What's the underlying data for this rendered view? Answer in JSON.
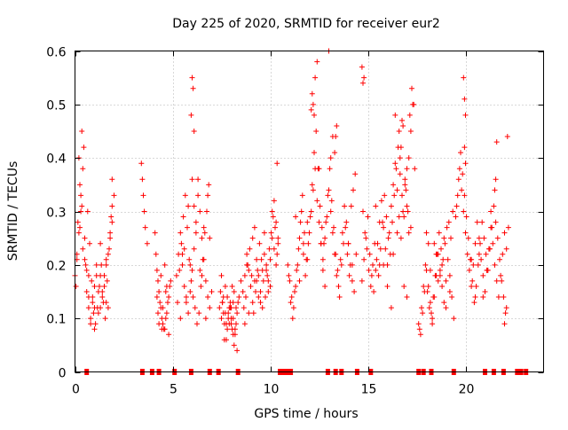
{
  "chart_data": {
    "type": "scatter",
    "title": "Day 225 of 2020, SRMTID for receiver eur2",
    "xlabel": "GPS time / hours",
    "ylabel": "SRMTID / TECUs",
    "xlim": [
      0,
      24
    ],
    "ylim": [
      0,
      0.6
    ],
    "xticks": [
      0,
      5,
      10,
      15,
      20
    ],
    "yticks": [
      0,
      0.1,
      0.2,
      0.3,
      0.4,
      0.5,
      0.6
    ],
    "xtick_labels": [
      "0",
      "5",
      "10",
      "15",
      "20"
    ],
    "ytick_labels": [
      "0",
      "0.1",
      "0.2",
      "0.3",
      "0.4",
      "0.5",
      "0.6"
    ],
    "grid": true,
    "marker": "plus",
    "color": "#ff0000",
    "series": [
      {
        "name": "SRMTID",
        "x": [
          0.0,
          0.1,
          0.2,
          0.3,
          0.35,
          0.4,
          0.5,
          0.55,
          0.6,
          0.7,
          0.8,
          0.9,
          1.0,
          1.1,
          1.2,
          1.3,
          1.4,
          1.5,
          1.6,
          1.7,
          1.8,
          1.9,
          2.0,
          0.05,
          0.15,
          0.25,
          0.45,
          0.65,
          0.75,
          0.85,
          0.95,
          1.05,
          1.15,
          1.25,
          1.35,
          1.45,
          1.55,
          1.65,
          1.75,
          1.85,
          0.2,
          0.3,
          0.5,
          0.7,
          0.9,
          1.1,
          1.3,
          1.5,
          1.7,
          1.9,
          0.25,
          0.35,
          0.6,
          0.8,
          1.0,
          1.2,
          1.4,
          1.6,
          1.8,
          0.1,
          0.4,
          0.7,
          1.0,
          1.3,
          1.6,
          1.9,
          3.4,
          3.45,
          3.5,
          3.55,
          3.6,
          3.7,
          4.1,
          4.2,
          4.3,
          4.4,
          4.5,
          4.6,
          4.7,
          4.8,
          4.9,
          4.15,
          4.25,
          4.35,
          4.45,
          4.55,
          4.65,
          4.75,
          4.85,
          4.2,
          4.4,
          4.6,
          4.8,
          4.3,
          4.5,
          4.7,
          4.25,
          4.45,
          4.65,
          5.2,
          5.3,
          5.4,
          5.5,
          5.6,
          5.7,
          5.8,
          5.9,
          6.0,
          6.1,
          6.2,
          6.3,
          6.4,
          6.5,
          6.6,
          6.7,
          6.8,
          6.9,
          7.0,
          5.25,
          5.35,
          5.45,
          5.55,
          5.65,
          5.75,
          5.85,
          5.95,
          6.05,
          6.15,
          6.25,
          6.35,
          6.45,
          6.55,
          6.65,
          6.75,
          6.85,
          5.5,
          5.7,
          5.9,
          6.1,
          6.3,
          6.5,
          6.7,
          6.9,
          5.4,
          5.6,
          5.8,
          6.0,
          6.2,
          6.4,
          6.6,
          6.8,
          5.95,
          6.0,
          6.05,
          6.1,
          7.4,
          7.5,
          7.6,
          7.7,
          7.8,
          7.9,
          8.0,
          8.1,
          8.2,
          8.3,
          8.4,
          8.5,
          7.45,
          7.55,
          7.65,
          7.75,
          7.85,
          7.95,
          8.05,
          8.15,
          8.25,
          8.35,
          7.5,
          7.7,
          7.9,
          8.1,
          8.3,
          7.6,
          7.8,
          8.0,
          8.2,
          7.55,
          7.75,
          7.95,
          8.15,
          7.65,
          7.85,
          8.05,
          8.25,
          8.0,
          8.1,
          8.6,
          8.7,
          8.8,
          8.9,
          9.0,
          9.1,
          9.2,
          9.3,
          9.4,
          9.5,
          9.6,
          9.7,
          9.8,
          9.9,
          10.0,
          10.1,
          10.2,
          10.3,
          10.4,
          8.65,
          8.75,
          8.85,
          8.95,
          9.05,
          9.15,
          9.25,
          9.35,
          9.45,
          9.55,
          9.65,
          9.75,
          9.85,
          9.95,
          10.05,
          10.15,
          10.25,
          10.35,
          8.7,
          8.9,
          9.1,
          9.3,
          9.5,
          9.7,
          9.9,
          10.1,
          10.3,
          8.8,
          9.0,
          9.2,
          9.4,
          9.6,
          9.8,
          10.0,
          10.2,
          10.35,
          10.4,
          10.9,
          11.0,
          11.1,
          11.2,
          11.3,
          11.4,
          11.5,
          11.6,
          11.7,
          11.8,
          11.9,
          12.0,
          12.1,
          12.2,
          12.3,
          12.4,
          12.5,
          12.6,
          12.7,
          12.8,
          12.9,
          13.0,
          13.1,
          13.2,
          13.3,
          13.4,
          13.5,
          13.6,
          13.7,
          13.8,
          13.9,
          14.0,
          14.1,
          14.2,
          14.3,
          14.4,
          10.95,
          11.05,
          11.15,
          11.25,
          11.35,
          11.45,
          11.55,
          11.65,
          11.75,
          11.85,
          11.95,
          12.05,
          12.15,
          12.25,
          12.35,
          12.45,
          12.55,
          12.65,
          12.75,
          12.85,
          12.95,
          13.05,
          13.15,
          13.25,
          13.35,
          13.45,
          13.55,
          13.65,
          13.75,
          13.85,
          13.95,
          14.05,
          14.15,
          14.25,
          14.35,
          12.2,
          12.3,
          12.4,
          13.0,
          13.1,
          13.35,
          13.4,
          12.1,
          12.15,
          12.25,
          13.2,
          13.3,
          12.5,
          12.6,
          12.7,
          12.8,
          11.3,
          11.5,
          11.7,
          11.9,
          14.0,
          14.2,
          14.7,
          14.8,
          14.9,
          15.0,
          15.1,
          15.2,
          15.3,
          15.4,
          15.5,
          15.6,
          15.7,
          15.8,
          15.9,
          16.0,
          16.1,
          16.2,
          16.3,
          16.4,
          16.5,
          16.6,
          16.7,
          16.8,
          16.9,
          17.0,
          17.1,
          17.2,
          17.3,
          17.4,
          14.75,
          14.85,
          14.95,
          15.05,
          15.15,
          15.25,
          15.35,
          15.45,
          15.55,
          15.65,
          15.75,
          15.85,
          15.95,
          16.05,
          16.15,
          16.25,
          16.35,
          16.45,
          16.55,
          16.65,
          16.75,
          16.85,
          16.95,
          17.05,
          17.15,
          17.25,
          17.35,
          16.6,
          16.65,
          16.7,
          16.8,
          16.9,
          17.0,
          17.1,
          16.3,
          16.4,
          16.5,
          14.7,
          14.75,
          14.8,
          16.75,
          16.85,
          17.0,
          17.2,
          15.4,
          15.6,
          15.8,
          16.0,
          16.2,
          17.6,
          17.7,
          17.8,
          17.9,
          18.0,
          18.1,
          18.2,
          18.3,
          18.4,
          18.5,
          18.6,
          18.7,
          18.8,
          18.9,
          19.0,
          19.1,
          19.2,
          19.3,
          19.4,
          17.65,
          17.75,
          17.85,
          17.95,
          18.05,
          18.15,
          18.25,
          18.35,
          18.45,
          18.55,
          18.65,
          18.75,
          18.85,
          18.95,
          19.05,
          19.15,
          19.25,
          19.35,
          18.0,
          18.2,
          18.4,
          18.6,
          18.8,
          19.0,
          19.2,
          18.1,
          18.3,
          18.5,
          18.7,
          18.9,
          19.5,
          19.6,
          19.7,
          19.8,
          19.9,
          20.0,
          20.1,
          20.2,
          20.3,
          20.4,
          20.5,
          20.6,
          20.7,
          20.8,
          20.9,
          21.0,
          21.1,
          21.2,
          21.3,
          21.4,
          21.5,
          21.6,
          21.7,
          21.8,
          21.9,
          22.0,
          22.1,
          22.2,
          19.55,
          19.65,
          19.75,
          19.85,
          19.95,
          20.05,
          20.15,
          20.25,
          20.35,
          20.45,
          20.55,
          20.65,
          20.75,
          20.85,
          20.95,
          21.05,
          21.15,
          21.25,
          21.35,
          21.45,
          21.55,
          21.65,
          21.75,
          21.85,
          21.95,
          22.05,
          22.15,
          19.9,
          19.95,
          20.0,
          19.95,
          20.0,
          21.5,
          21.55,
          21.6,
          20.3,
          20.5,
          20.7,
          20.9,
          21.1,
          21.3,
          22.0,
          22.1
        ],
        "y": [
          0.18,
          0.22,
          0.26,
          0.3,
          0.45,
          0.38,
          0.25,
          0.2,
          0.15,
          0.12,
          0.1,
          0.13,
          0.16,
          0.18,
          0.15,
          0.12,
          0.14,
          0.18,
          0.2,
          0.22,
          0.25,
          0.28,
          0.33,
          0.16,
          0.28,
          0.35,
          0.42,
          0.3,
          0.24,
          0.17,
          0.11,
          0.09,
          0.12,
          0.16,
          0.2,
          0.13,
          0.1,
          0.17,
          0.23,
          0.29,
          0.4,
          0.33,
          0.21,
          0.18,
          0.14,
          0.2,
          0.24,
          0.16,
          0.12,
          0.36,
          0.27,
          0.31,
          0.19,
          0.09,
          0.08,
          0.11,
          0.15,
          0.21,
          0.26,
          0.21,
          0.23,
          0.14,
          0.12,
          0.18,
          0.13,
          0.31,
          0.39,
          0.36,
          0.33,
          0.3,
          0.27,
          0.24,
          0.26,
          0.19,
          0.15,
          0.12,
          0.09,
          0.08,
          0.11,
          0.14,
          0.17,
          0.22,
          0.17,
          0.13,
          0.1,
          0.08,
          0.1,
          0.13,
          0.16,
          0.14,
          0.18,
          0.2,
          0.07,
          0.09,
          0.12,
          0.16,
          0.11,
          0.08,
          0.15,
          0.18,
          0.22,
          0.26,
          0.2,
          0.16,
          0.13,
          0.11,
          0.15,
          0.19,
          0.23,
          0.28,
          0.33,
          0.3,
          0.25,
          0.21,
          0.17,
          0.14,
          0.12,
          0.15,
          0.13,
          0.19,
          0.24,
          0.29,
          0.33,
          0.27,
          0.21,
          0.17,
          0.14,
          0.12,
          0.09,
          0.11,
          0.16,
          0.21,
          0.26,
          0.3,
          0.35,
          0.22,
          0.14,
          0.2,
          0.31,
          0.36,
          0.18,
          0.1,
          0.25,
          0.1,
          0.23,
          0.31,
          0.36,
          0.26,
          0.19,
          0.27,
          0.33,
          0.48,
          0.55,
          0.53,
          0.45,
          0.12,
          0.1,
          0.14,
          0.11,
          0.08,
          0.09,
          0.12,
          0.1,
          0.07,
          0.11,
          0.14,
          0.17,
          0.15,
          0.13,
          0.09,
          0.06,
          0.1,
          0.13,
          0.08,
          0.05,
          0.09,
          0.13,
          0.18,
          0.16,
          0.12,
          0.07,
          0.04,
          0.11,
          0.14,
          0.1,
          0.08,
          0.13,
          0.09,
          0.12,
          0.15,
          0.06,
          0.11,
          0.16,
          0.12,
          0.09,
          0.13,
          0.15,
          0.18,
          0.22,
          0.19,
          0.16,
          0.13,
          0.17,
          0.21,
          0.18,
          0.15,
          0.19,
          0.22,
          0.2,
          0.17,
          0.21,
          0.25,
          0.23,
          0.2,
          0.24,
          0.12,
          0.14,
          0.2,
          0.23,
          0.18,
          0.11,
          0.15,
          0.19,
          0.24,
          0.21,
          0.17,
          0.14,
          0.18,
          0.23,
          0.26,
          0.29,
          0.27,
          0.22,
          0.09,
          0.11,
          0.25,
          0.17,
          0.13,
          0.26,
          0.15,
          0.3,
          0.28,
          0.2,
          0.16,
          0.27,
          0.14,
          0.12,
          0.19,
          0.16,
          0.32,
          0.39,
          0.25,
          0.2,
          0.17,
          0.14,
          0.12,
          0.16,
          0.2,
          0.25,
          0.3,
          0.22,
          0.18,
          0.21,
          0.26,
          0.3,
          0.34,
          0.38,
          0.32,
          0.28,
          0.24,
          0.21,
          0.25,
          0.29,
          0.34,
          0.3,
          0.26,
          0.22,
          0.18,
          0.16,
          0.21,
          0.26,
          0.31,
          0.28,
          0.24,
          0.2,
          0.17,
          0.15,
          0.22,
          0.18,
          0.13,
          0.1,
          0.15,
          0.19,
          0.23,
          0.28,
          0.33,
          0.26,
          0.21,
          0.24,
          0.29,
          0.35,
          0.41,
          0.45,
          0.38,
          0.31,
          0.27,
          0.24,
          0.28,
          0.33,
          0.38,
          0.32,
          0.27,
          0.22,
          0.19,
          0.14,
          0.2,
          0.24,
          0.27,
          0.22,
          0.18,
          0.31,
          0.34,
          0.37,
          0.5,
          0.55,
          0.58,
          0.6,
          0.4,
          0.44,
          0.46,
          0.49,
          0.52,
          0.48,
          0.44,
          0.41,
          0.38,
          0.24,
          0.19,
          0.16,
          0.29,
          0.17,
          0.24,
          0.28,
          0.24,
          0.2,
          0.17,
          0.21,
          0.25,
          0.29,
          0.22,
          0.18,
          0.15,
          0.19,
          0.24,
          0.28,
          0.32,
          0.27,
          0.23,
          0.2,
          0.26,
          0.31,
          0.35,
          0.39,
          0.34,
          0.29,
          0.25,
          0.3,
          0.35,
          0.31,
          0.26,
          0.45,
          0.5,
          0.38,
          0.3,
          0.26,
          0.23,
          0.19,
          0.16,
          0.2,
          0.24,
          0.21,
          0.18,
          0.23,
          0.28,
          0.33,
          0.29,
          0.25,
          0.22,
          0.28,
          0.33,
          0.38,
          0.42,
          0.37,
          0.33,
          0.29,
          0.34,
          0.3,
          0.48,
          0.53,
          0.5,
          0.45,
          0.4,
          0.42,
          0.46,
          0.36,
          0.38,
          0.4,
          0.22,
          0.48,
          0.26,
          0.57,
          0.54,
          0.55,
          0.47,
          0.16,
          0.14,
          0.27,
          0.31,
          0.2,
          0.2,
          0.16,
          0.12,
          0.09,
          0.07,
          0.11,
          0.15,
          0.19,
          0.16,
          0.13,
          0.1,
          0.14,
          0.18,
          0.22,
          0.19,
          0.16,
          0.13,
          0.17,
          0.21,
          0.18,
          0.14,
          0.1,
          0.08,
          0.12,
          0.16,
          0.2,
          0.15,
          0.12,
          0.11,
          0.14,
          0.18,
          0.22,
          0.26,
          0.23,
          0.21,
          0.24,
          0.27,
          0.28,
          0.25,
          0.3,
          0.26,
          0.19,
          0.24,
          0.17,
          0.2,
          0.12,
          0.15,
          0.24,
          0.09,
          0.22,
          0.18,
          0.25,
          0.29,
          0.33,
          0.38,
          0.34,
          0.3,
          0.26,
          0.22,
          0.19,
          0.16,
          0.2,
          0.24,
          0.28,
          0.25,
          0.21,
          0.18,
          0.15,
          0.19,
          0.23,
          0.27,
          0.24,
          0.2,
          0.17,
          0.14,
          0.18,
          0.22,
          0.26,
          0.23,
          0.27,
          0.31,
          0.36,
          0.41,
          0.37,
          0.33,
          0.29,
          0.25,
          0.21,
          0.17,
          0.13,
          0.16,
          0.2,
          0.24,
          0.28,
          0.25,
          0.22,
          0.19,
          0.23,
          0.27,
          0.31,
          0.28,
          0.25,
          0.21,
          0.17,
          0.14,
          0.11,
          0.44,
          0.55,
          0.51,
          0.48,
          0.42,
          0.39,
          0.34,
          0.36,
          0.43,
          0.21,
          0.14,
          0.22,
          0.14,
          0.19,
          0.3,
          0.09,
          0.12
        ],
        "gap_markers": [
          0.6,
          3.45,
          3.95,
          4.3,
          5.1,
          5.95,
          6.9,
          7.35,
          8.35,
          10.5,
          10.65,
          10.85,
          11.05,
          12.95,
          13.35,
          13.65,
          14.45,
          15.15,
          17.6,
          17.85,
          18.25,
          19.4,
          21.0,
          21.45,
          21.95,
          22.65,
          22.85,
          23.1
        ]
      }
    ]
  }
}
